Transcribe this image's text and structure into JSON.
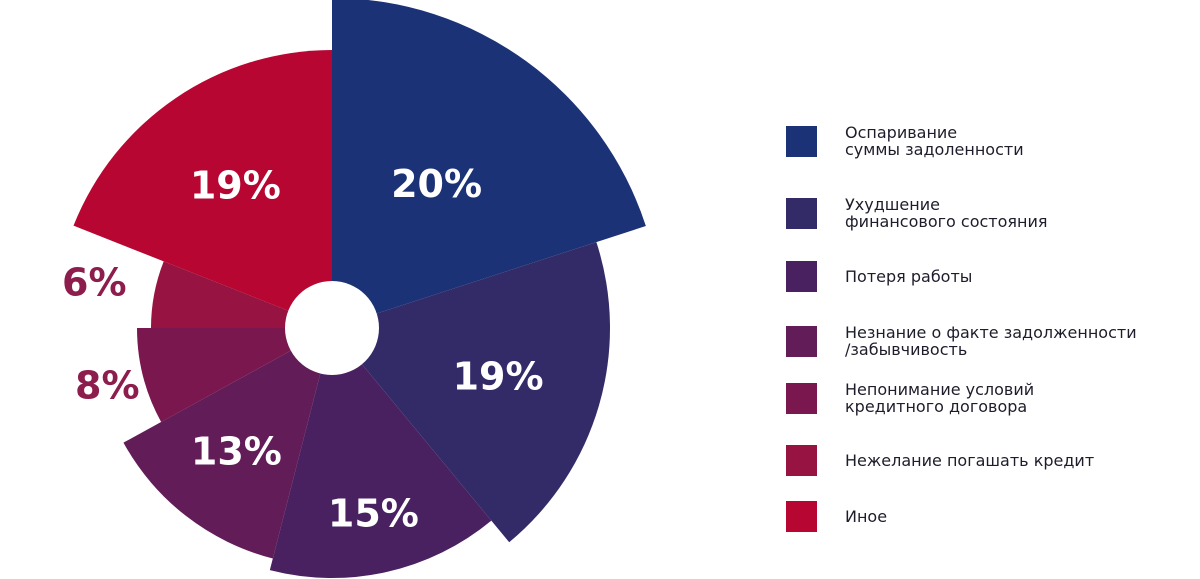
{
  "chart_data": {
    "type": "pie",
    "variant": "variable-radius pie with center hole",
    "categories": [
      "Оспаривание\nсуммы задоленности",
      "Ухудшение\nфинансового состояния",
      "Потеря работы",
      "Незнание о факте задолженности\n/забывчивость",
      "Непонимание условий\nкредитного договора",
      "Нежелание погашать кредит",
      "Иное"
    ],
    "values": [
      20,
      19,
      15,
      13,
      8,
      6,
      19
    ],
    "value_labels": [
      "20%",
      "19%",
      "15%",
      "13%",
      "8%",
      "6%",
      "19%"
    ],
    "colors": [
      "#1c3276",
      "#332b68",
      "#4a2160",
      "#621c57",
      "#7a174e",
      "#961342",
      "#b60631"
    ],
    "outer_label_color": "#8c1d4c",
    "legend_position": "right",
    "start": "top, clockwise"
  }
}
